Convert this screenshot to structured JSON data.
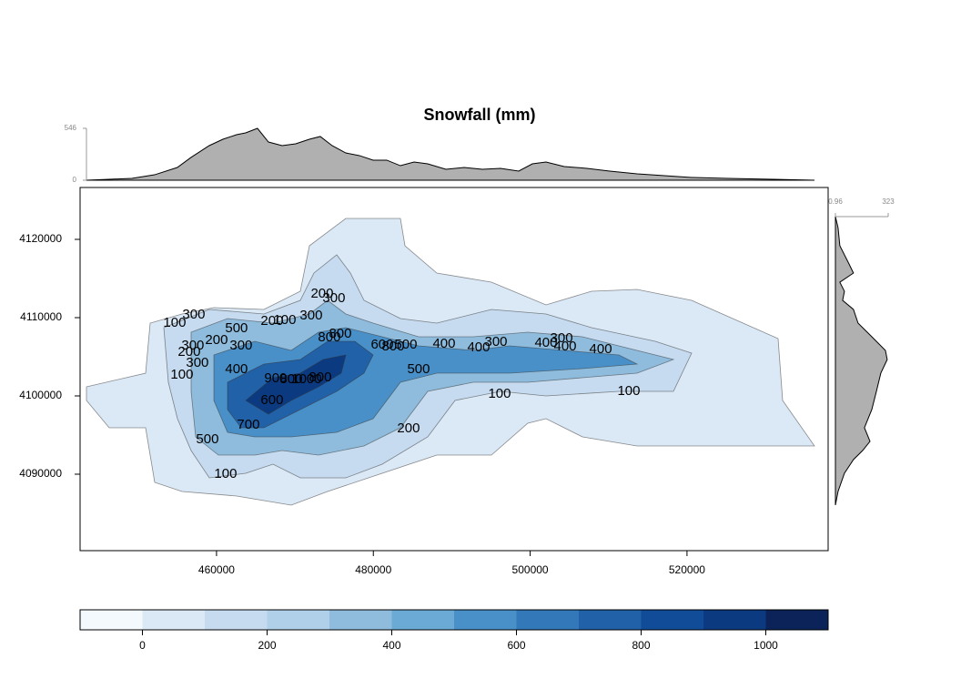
{
  "chart_data": {
    "type": "contour",
    "title": "Snowfall (mm)",
    "xlim": [
      442600,
      538000
    ],
    "ylim": [
      4080230,
      4126630
    ],
    "xticks": [
      460000,
      480000,
      500000,
      520000
    ],
    "yticks": [
      4090000,
      4100000,
      4110000,
      4120000
    ],
    "contour_labels": [
      {
        "label": "100",
        "x": 454660,
        "y": 4109300
      },
      {
        "label": "300",
        "x": 457100,
        "y": 4110350
      },
      {
        "label": "300",
        "x": 456980,
        "y": 4106400
      },
      {
        "label": "200",
        "x": 456520,
        "y": 4105580
      },
      {
        "label": "200",
        "x": 460000,
        "y": 4107090
      },
      {
        "label": "500",
        "x": 462550,
        "y": 4108600
      },
      {
        "label": "300",
        "x": 463130,
        "y": 4106400
      },
      {
        "label": "300",
        "x": 457560,
        "y": 4104190
      },
      {
        "label": "100",
        "x": 455590,
        "y": 4102670
      },
      {
        "label": "400",
        "x": 462550,
        "y": 4103370
      },
      {
        "label": "200",
        "x": 467080,
        "y": 4109530
      },
      {
        "label": "100",
        "x": 468710,
        "y": 4109650
      },
      {
        "label": "300",
        "x": 472070,
        "y": 4110230
      },
      {
        "label": "200",
        "x": 473470,
        "y": 4113020
      },
      {
        "label": "300",
        "x": 474970,
        "y": 4112440
      },
      {
        "label": "800",
        "x": 474390,
        "y": 4107440
      },
      {
        "label": "800",
        "x": 475790,
        "y": 4107910
      },
      {
        "label": "600",
        "x": 481130,
        "y": 4106510
      },
      {
        "label": "800",
        "x": 482520,
        "y": 4106280
      },
      {
        "label": "500",
        "x": 484140,
        "y": 4106510
      },
      {
        "label": "400",
        "x": 489020,
        "y": 4106630
      },
      {
        "label": "400",
        "x": 493430,
        "y": 4106160
      },
      {
        "label": "300",
        "x": 495640,
        "y": 4106860
      },
      {
        "label": "500",
        "x": 485770,
        "y": 4103370
      },
      {
        "label": "900",
        "x": 467540,
        "y": 4102210
      },
      {
        "label": "800",
        "x": 469520,
        "y": 4102090
      },
      {
        "label": "1000",
        "x": 471490,
        "y": 4102090
      },
      {
        "label": "800",
        "x": 473230,
        "y": 4102330
      },
      {
        "label": "600",
        "x": 467080,
        "y": 4099420
      },
      {
        "label": "700",
        "x": 464060,
        "y": 4096280
      },
      {
        "label": "500",
        "x": 458840,
        "y": 4094420
      },
      {
        "label": "100",
        "x": 461160,
        "y": 4090000
      },
      {
        "label": "200",
        "x": 484490,
        "y": 4095810
      },
      {
        "label": "100",
        "x": 496100,
        "y": 4100230
      },
      {
        "label": "400",
        "x": 502020,
        "y": 4106740
      },
      {
        "label": "300",
        "x": 504000,
        "y": 4107330
      },
      {
        "label": "400",
        "x": 504460,
        "y": 4106280
      },
      {
        "label": "400",
        "x": 508990,
        "y": 4105930
      },
      {
        "label": "100",
        "x": 512580,
        "y": 4100580
      }
    ],
    "top_margin": {
      "color": "#b0b0b0",
      "ylim": [
        0,
        546
      ],
      "yticks": [
        0,
        546
      ],
      "x": [
        443400,
        446300,
        449200,
        452100,
        455000,
        456750,
        459070,
        460810,
        462550,
        463710,
        465220,
        466620,
        468360,
        470100,
        471840,
        473230,
        474740,
        476480,
        478220,
        479970,
        481710,
        483450,
        485190,
        486930,
        489250,
        491570,
        493900,
        496220,
        498540,
        500280,
        502020,
        504340,
        507240,
        510150,
        513630,
        517110,
        520600,
        525240,
        531040,
        536260
      ],
      "values": [
        0,
        10,
        19,
        57,
        134,
        240,
        364,
        431,
        479,
        498,
        546,
        402,
        364,
        383,
        431,
        460,
        364,
        287,
        259,
        211,
        211,
        153,
        192,
        172,
        115,
        134,
        115,
        125,
        96,
        172,
        192,
        144,
        125,
        96,
        67,
        48,
        29,
        19,
        10,
        0
      ]
    },
    "right_margin": {
      "color": "#b0b0b0",
      "xlim": [
        0.96,
        323
      ],
      "xticks": [
        0.96,
        323
      ],
      "y": [
        4122910,
        4121510,
        4119190,
        4116860,
        4115700,
        4114530,
        4113370,
        4112210,
        4111050,
        4109300,
        4107560,
        4105810,
        4104650,
        4102910,
        4100580,
        4098260,
        4095930,
        4094190,
        4093020,
        4091860,
        4090120,
        4087790,
        4086050
      ],
      "values": [
        0.96,
        17,
        28,
        84,
        111,
        28,
        56,
        45,
        111,
        139,
        223,
        306,
        317,
        278,
        251,
        223,
        178,
        212,
        167,
        111,
        56,
        17,
        0.96
      ]
    },
    "colorbar": {
      "breaks": [
        -100,
        0,
        100,
        200,
        300,
        400,
        500,
        600,
        700,
        800,
        900,
        1000,
        1100
      ],
      "colors": [
        "#f4f9fe",
        "#dbe8f5",
        "#c6dbef",
        "#b0cfe8",
        "#8fbcdc",
        "#6aaad4",
        "#4a90c8",
        "#3378b9",
        "#2161a8",
        "#104c97",
        "#0b3a80",
        "#0b2359"
      ],
      "ticks": [
        0,
        200,
        400,
        600,
        800,
        1000
      ]
    }
  }
}
